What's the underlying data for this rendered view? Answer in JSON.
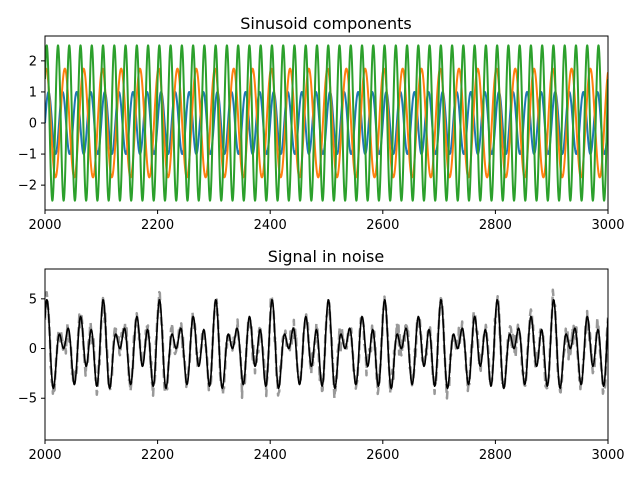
{
  "chart_data": [
    {
      "type": "line",
      "title": "Sinusoid components",
      "xlim": [
        2000,
        3000
      ],
      "ylim": [
        -2.8,
        2.8
      ],
      "xticks": [
        2000,
        2200,
        2400,
        2600,
        2800,
        3000
      ],
      "yticks": [
        -2,
        -1,
        0,
        1,
        2
      ],
      "xlabel": "",
      "ylabel": "",
      "grid": false,
      "x_step": 1,
      "series": [
        {
          "color": "#1f77b4",
          "amplitude": 1.0,
          "cycles": 40,
          "phase": 0.0
        },
        {
          "color": "#ff7f0e",
          "amplitude": 1.75,
          "cycles": 30,
          "phase": 1.2
        },
        {
          "color": "#2ca02c",
          "amplitude": 2.5,
          "cycles": 50,
          "phase": 0.6
        }
      ]
    },
    {
      "type": "line",
      "title": "Signal in noise",
      "xlim": [
        2000,
        3000
      ],
      "ylim": [
        -9.2,
        8.0
      ],
      "xticks": [
        2000,
        2200,
        2400,
        2600,
        2800,
        3000
      ],
      "yticks": [
        -5,
        0,
        5
      ],
      "xlabel": "",
      "ylabel": "",
      "grid": false,
      "x_step": 1,
      "series": [
        {
          "style": "dashed",
          "color": "#999999",
          "role": "signal with noise"
        },
        {
          "style": "solid",
          "color": "#000000",
          "role": "signal"
        }
      ]
    }
  ]
}
